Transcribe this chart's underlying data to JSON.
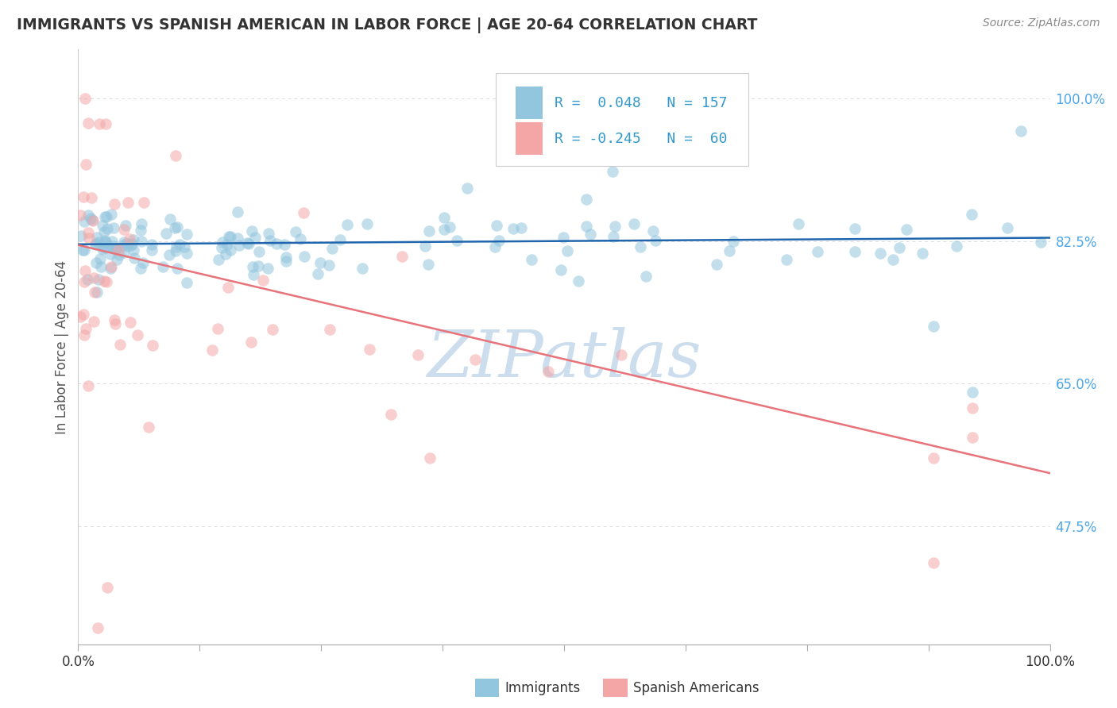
{
  "title": "IMMIGRANTS VS SPANISH AMERICAN IN LABOR FORCE | AGE 20-64 CORRELATION CHART",
  "source": "Source: ZipAtlas.com",
  "ylabel": "In Labor Force | Age 20-64",
  "xmin": 0.0,
  "xmax": 1.0,
  "ymin": 0.33,
  "ymax": 1.06,
  "right_ytick_labels": [
    "47.5%",
    "65.0%",
    "82.5%",
    "100.0%"
  ],
  "right_ytick_values": [
    0.475,
    0.65,
    0.825,
    1.0
  ],
  "watermark_text": "ZIPatlas",
  "watermark_color": "#ccdded",
  "blue_scatter_color": "#92c5de",
  "pink_scatter_color": "#f4a6a6",
  "blue_line_color": "#2166ac",
  "pink_line_color": "#e8737a",
  "title_color": "#333333",
  "right_label_color": "#4da6e8",
  "background_color": "#ffffff",
  "blue_trend_x": [
    0.0,
    1.0
  ],
  "blue_trend_y": [
    0.821,
    0.829
  ],
  "pink_trend_x": [
    0.0,
    1.0
  ],
  "pink_trend_y": [
    0.82,
    0.54
  ],
  "legend_box_color_blue": "#92c5de",
  "legend_box_color_pink": "#f4a6a6",
  "legend_border_color": "#cccccc",
  "legend_text_color": "#3399cc",
  "grid_color": "#dddddd"
}
